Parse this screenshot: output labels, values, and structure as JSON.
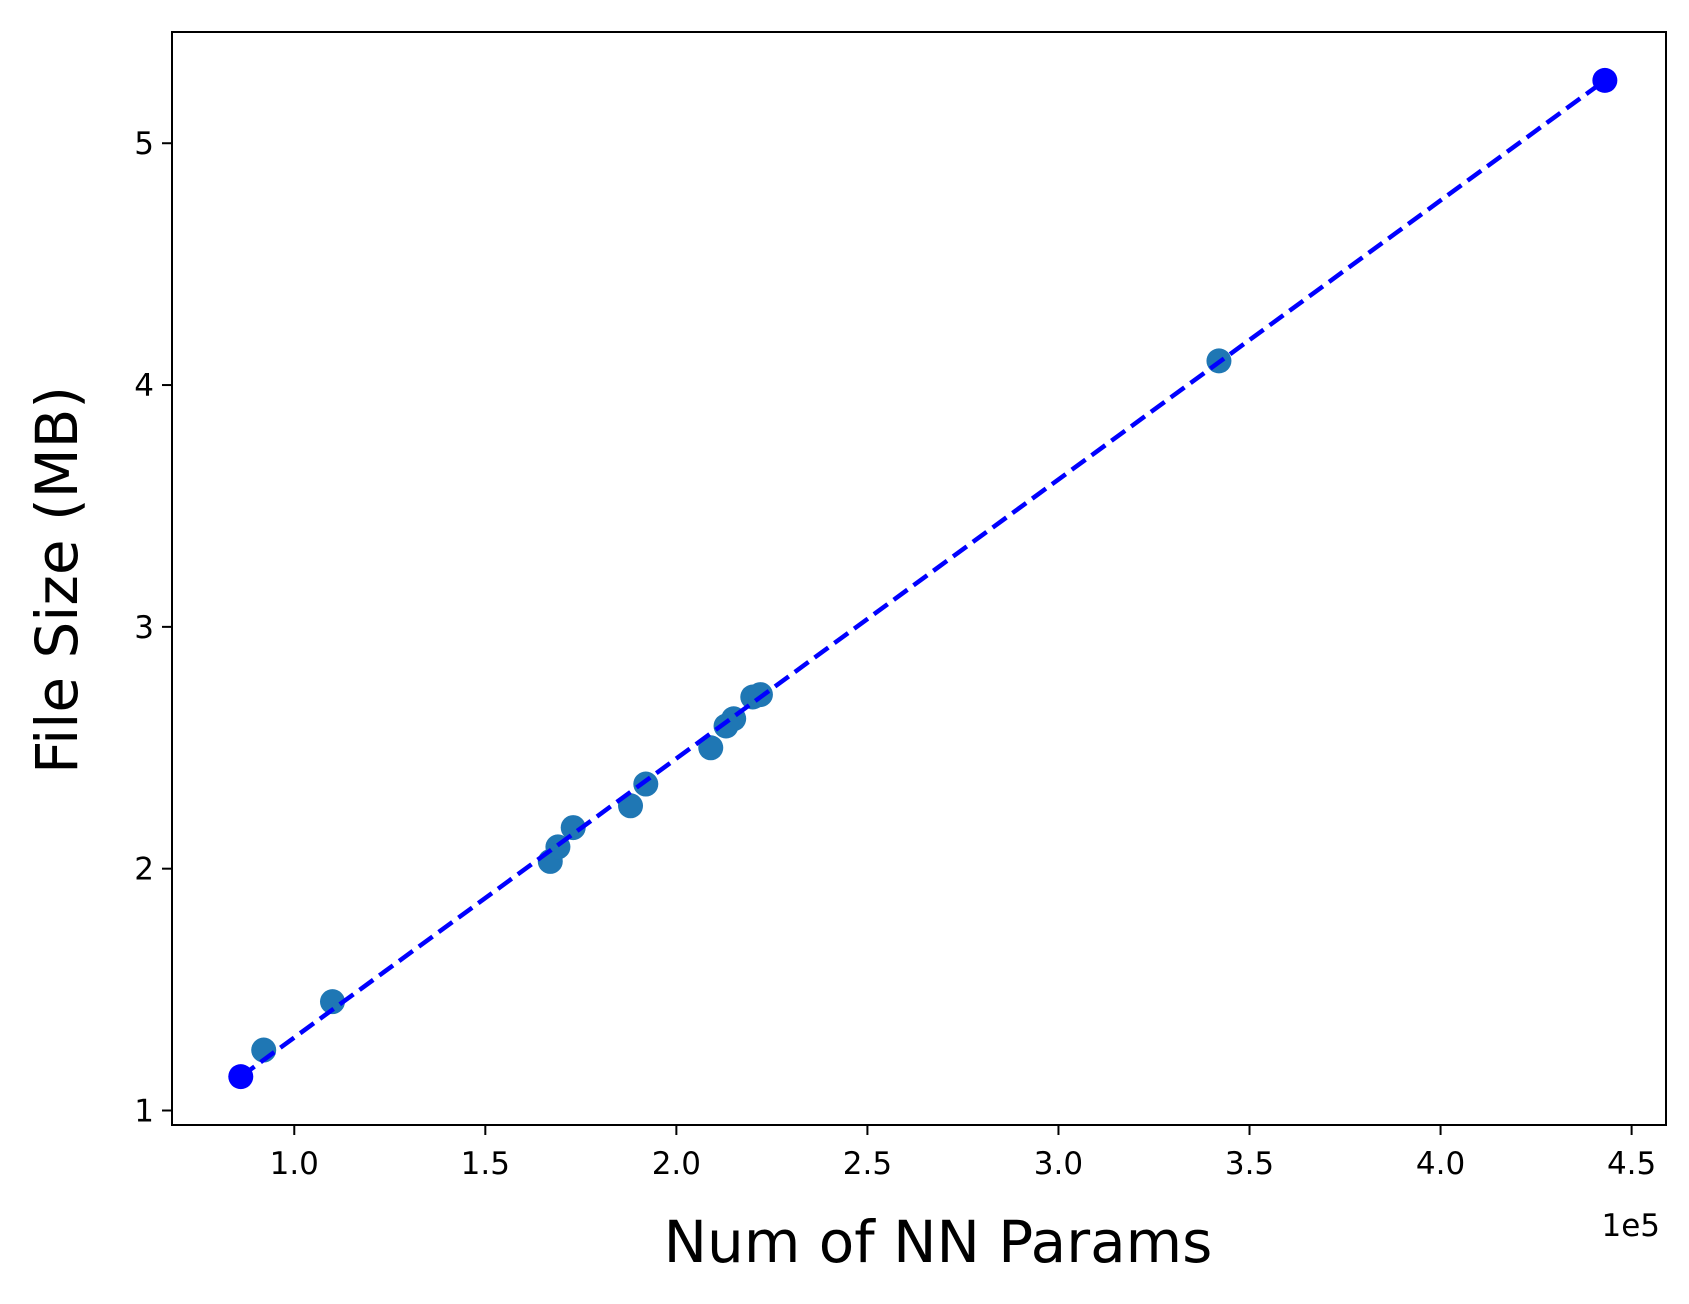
{
  "chart_data": {
    "type": "scatter",
    "title": "",
    "xlabel": "Num of NN Params",
    "ylabel": "File Size (MB)",
    "x_offset_label": "1e5",
    "xlim": [
      0.68,
      4.59
    ],
    "ylim": [
      0.94,
      5.46
    ],
    "xticks": [
      1.0,
      1.5,
      2.0,
      2.5,
      3.0,
      3.5,
      4.0,
      4.5
    ],
    "xtick_labels": [
      "1.0",
      "1.5",
      "2.0",
      "2.5",
      "3.0",
      "3.5",
      "4.0",
      "4.5"
    ],
    "yticks": [
      1,
      2,
      3,
      4,
      5
    ],
    "ytick_labels": [
      "1",
      "2",
      "3",
      "4",
      "5"
    ],
    "grid": false,
    "legend": "none",
    "series": [
      {
        "kind": "scatter",
        "color": "#1f77b4",
        "x": [
          0.92,
          1.1,
          1.67,
          1.69,
          1.73,
          1.88,
          1.92,
          2.09,
          2.13,
          2.15,
          2.2,
          2.22,
          3.42
        ],
        "y": [
          1.25,
          1.45,
          2.03,
          2.09,
          2.17,
          2.26,
          2.35,
          2.5,
          2.59,
          2.62,
          2.71,
          2.72,
          4.1
        ]
      },
      {
        "kind": "line",
        "style": "dashed",
        "color": "#0000ff",
        "x": [
          0.86,
          4.43
        ],
        "y": [
          1.14,
          5.26
        ]
      },
      {
        "kind": "scatter",
        "color": "#0000ff",
        "x": [
          0.86,
          4.43
        ],
        "y": [
          1.14,
          5.26
        ]
      }
    ]
  }
}
